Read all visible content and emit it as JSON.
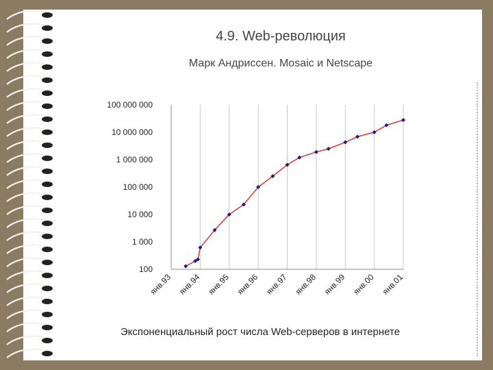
{
  "slide": {
    "title": "4.9. Web-революция",
    "subtitle": "Марк Андриссен. Mosaic и Netscape",
    "caption": "Экспоненциальный рост числа Web-серверов в интернете"
  },
  "colors": {
    "background": "#8b7b63",
    "line": "#e53030",
    "marker": "#1a1a8c",
    "grid": "#c8c8c8"
  },
  "chart_data": {
    "type": "line",
    "title": "",
    "xlabel": "",
    "ylabel": "",
    "yscale": "log",
    "ylim": [
      100,
      100000000
    ],
    "y_ticks": [
      100,
      1000,
      10000,
      100000,
      1000000,
      10000000,
      100000000
    ],
    "y_tick_labels": [
      "100",
      "1 000",
      "10 000",
      "100 000",
      "1 000 000",
      "10 000 000",
      "100 000 000"
    ],
    "x_ticks": [
      1993,
      1994,
      1995,
      1996,
      1997,
      1998,
      1999,
      2000,
      2001
    ],
    "x_tick_labels": [
      "янв.93",
      "янв.94",
      "янв.95",
      "янв.96",
      "янв.97",
      "янв.98",
      "янв.99",
      "янв.00",
      "янв.01"
    ],
    "xlim": [
      1993,
      2001
    ],
    "grid": "vertical",
    "series": [
      {
        "x": [
          1993.5,
          1993.83,
          1993.92,
          1994.0,
          1994.5,
          1995.0,
          1995.5,
          1996.0,
          1996.5,
          1997.0,
          1997.42,
          1998.0,
          1998.42,
          1999.0,
          1999.42,
          2000.0,
          2000.42,
          2001.0
        ],
        "y": [
          130,
          200,
          230,
          620,
          2700,
          10000,
          23000,
          100000,
          250000,
          650000,
          1200000,
          1900000,
          2500000,
          4300000,
          6900000,
          10000000,
          18000000,
          28000000
        ]
      }
    ]
  }
}
